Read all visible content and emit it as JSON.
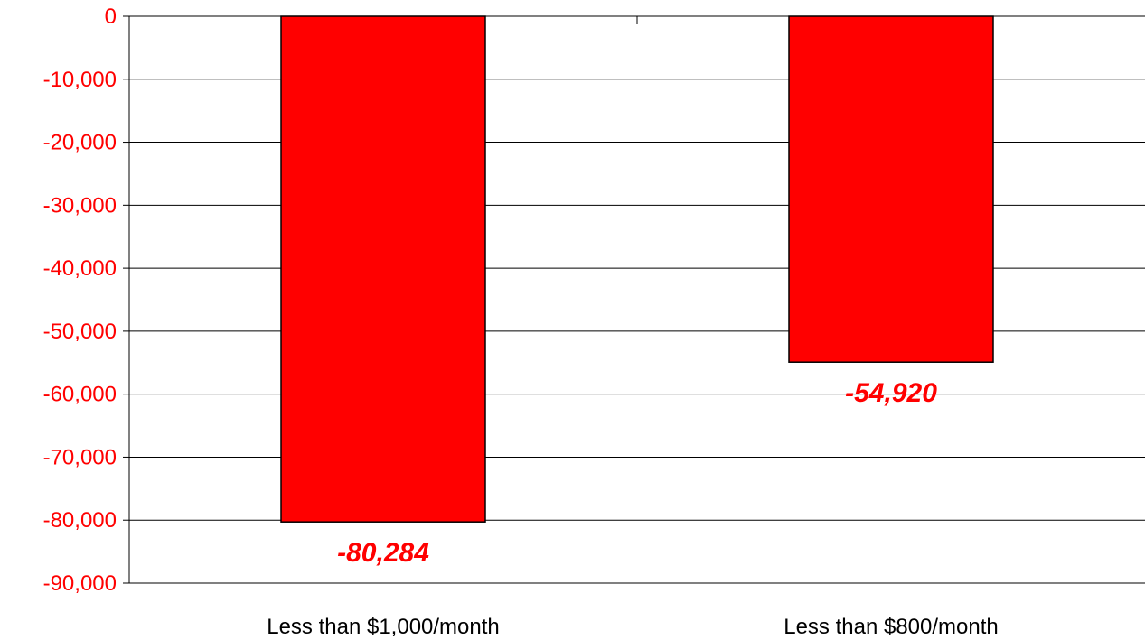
{
  "chart_data": {
    "type": "bar",
    "categories": [
      "Less than $1,000/month",
      "Less than $800/month"
    ],
    "values": [
      -80284,
      -54920
    ],
    "data_labels": [
      "-80,284",
      "-54,920"
    ],
    "title": "",
    "xlabel": "",
    "ylabel": "",
    "ylim": [
      -90000,
      0
    ],
    "yticks": [
      0,
      -10000,
      -20000,
      -30000,
      -40000,
      -50000,
      -60000,
      -70000,
      -80000,
      -90000
    ],
    "ytick_labels": [
      "0",
      "-10,000",
      "-20,000",
      "-30,000",
      "-40,000",
      "-50,000",
      "-60,000",
      "-70,000",
      "-80,000",
      "-90,000"
    ],
    "grid": true,
    "legend": "none",
    "colors": {
      "bar": "#ff0000",
      "bar_outline": "#000000",
      "tick_label": "#ff0000",
      "data_label": "#ff0000",
      "category_label": "#000000",
      "grid": "#000000"
    }
  }
}
